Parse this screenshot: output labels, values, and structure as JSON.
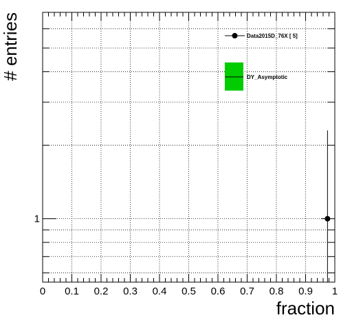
{
  "chart_data": {
    "type": "scatter",
    "xlabel": "fraction",
    "ylabel": "# entries",
    "xlim": [
      0,
      1
    ],
    "ylim": [
      0.55,
      7.0
    ],
    "y_scale": "log",
    "grid": true,
    "x_ticks": [
      0,
      0.1,
      0.2,
      0.3,
      0.4,
      0.5,
      0.6,
      0.7,
      0.8,
      0.9,
      1
    ],
    "x_tick_labels": [
      "0",
      "0.1",
      "0.2",
      "0.3",
      "0.4",
      "0.5",
      "0.6",
      "0.7",
      "0.8",
      "0.9",
      "1"
    ],
    "y_tick_labels": [
      {
        "value": 1,
        "label": "1"
      }
    ],
    "legend_position": "top-right",
    "series": [
      {
        "name": "Data2015D_76X [       5]",
        "kind": "points",
        "color": "#000000",
        "points": [
          {
            "x": 0.975,
            "y": 1,
            "y_err_low": 1.0,
            "y_err_high": 1.3
          }
        ]
      },
      {
        "name": "DY_Asymptotic",
        "kind": "band",
        "color": "#00cc00",
        "points": []
      }
    ]
  }
}
